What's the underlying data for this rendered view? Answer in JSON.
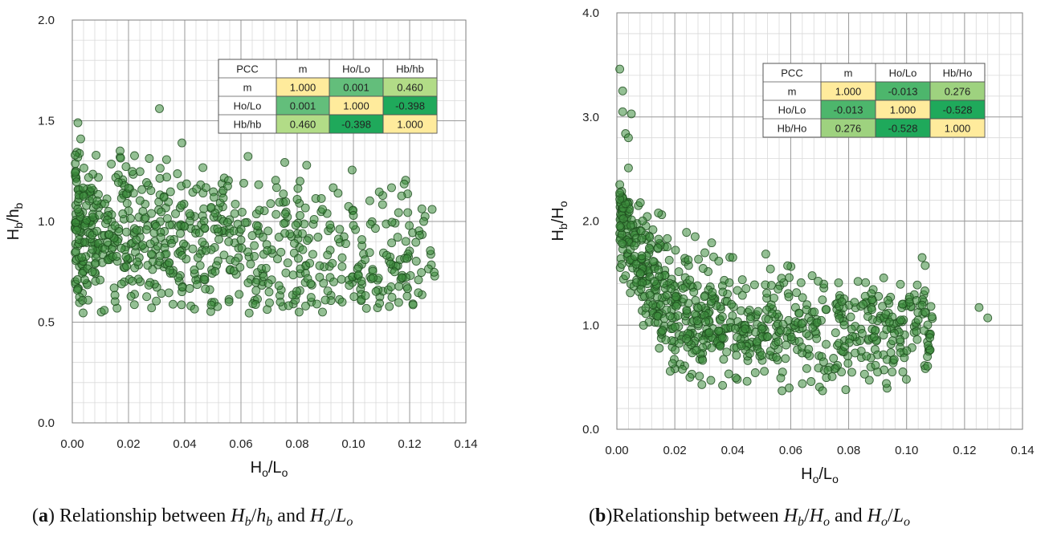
{
  "chart_data": [
    {
      "type": "scatter",
      "panel": "a",
      "xlabel": {
        "main": "H",
        "sub1": "o",
        "mid": "/L",
        "sub2": "o"
      },
      "ylabel": {
        "main": "H",
        "sub1": "b",
        "mid": "/h",
        "sub2": "b"
      },
      "xlim": [
        0,
        0.14
      ],
      "ylim": [
        0,
        2.0
      ],
      "xticks": [
        "0.00",
        "0.02",
        "0.04",
        "0.06",
        "0.08",
        "0.10",
        "0.12",
        "0.14"
      ],
      "yticks": [
        "0.0",
        "0.5",
        "1.0",
        "1.5",
        "2.0"
      ],
      "grid": true,
      "point_color": "#3c8c3c",
      "caption": {
        "label": "a",
        "text": "Relationship between",
        "v1": "H",
        "v1sub": "b",
        "v1b": "h",
        "v1bsub": "b",
        "and": "and",
        "v2": "H",
        "v2sub": "o",
        "v2b": "L",
        "v2bsub": "o"
      },
      "table": {
        "headers": [
          "PCC",
          "m",
          "Ho/Lo",
          "Hb/hb"
        ],
        "rows": [
          {
            "label": "m",
            "values": [
              "1.000",
              "0.001",
              "0.460"
            ]
          },
          {
            "label": "Ho/Lo",
            "values": [
              "0.001",
              "1.000",
              "-0.398"
            ]
          },
          {
            "label": "Hb/hb",
            "values": [
              "0.460",
              "-0.398",
              "1.000"
            ]
          }
        ]
      },
      "generator": {
        "n": 720,
        "seed": 11,
        "xmax": 0.128,
        "skew": 1.6,
        "base": 0.97,
        "slope": -1.8,
        "spread": 0.2,
        "ymin": 0.54,
        "ymax": 1.35
      },
      "points": [
        [
          0.002,
          1.49
        ],
        [
          0.003,
          1.41
        ],
        [
          0.001,
          1.33
        ],
        [
          0.031,
          1.56
        ],
        [
          0.039,
          1.39
        ],
        [
          0.017,
          1.35
        ],
        [
          0.128,
          1.06
        ],
        [
          0.125,
          1.0
        ],
        [
          0.107,
          0.72
        ],
        [
          0.103,
          0.91
        ],
        [
          0.1,
          1.03
        ],
        [
          0.1,
          0.98
        ],
        [
          0.096,
          0.6
        ],
        [
          0.096,
          0.82
        ],
        [
          0.093,
          0.7
        ],
        [
          0.089,
          1.06
        ],
        [
          0.089,
          0.55
        ],
        [
          0.09,
          0.61
        ],
        [
          0.081,
          1.2
        ],
        [
          0.08,
          1.11
        ],
        [
          0.081,
          1.03
        ],
        [
          0.083,
          0.58
        ],
        [
          0.087,
          0.59
        ],
        [
          0.061,
          1.19
        ],
        [
          0.064,
          0.93
        ],
        [
          0.07,
          0.65
        ],
        [
          0.074,
          0.6
        ],
        [
          0.088,
          0.78
        ]
      ]
    },
    {
      "type": "scatter",
      "panel": "b",
      "xlabel": {
        "main": "H",
        "sub1": "o",
        "mid": "/L",
        "sub2": "o"
      },
      "ylabel": {
        "main": "H",
        "sub1": "b",
        "mid": "/H",
        "sub2": "o"
      },
      "xlim": [
        0,
        0.14
      ],
      "ylim": [
        0,
        4.0
      ],
      "xticks": [
        "0.00",
        "0.02",
        "0.04",
        "0.06",
        "0.08",
        "0.10",
        "0.12",
        "0.14"
      ],
      "yticks": [
        "0.0",
        "1.0",
        "2.0",
        "3.0",
        "4.0"
      ],
      "grid": true,
      "point_color": "#3c8c3c",
      "caption": {
        "label": "b",
        "text": "Relationship between",
        "v1": "H",
        "v1sub": "b",
        "v1b": "H",
        "v1bsub": "o",
        "and": "and",
        "v2": "H",
        "v2sub": "o",
        "v2b": "L",
        "v2bsub": "o"
      },
      "table": {
        "headers": [
          "PCC",
          "m",
          "Ho/Lo",
          "Hb/Ho"
        ],
        "rows": [
          {
            "label": "m",
            "values": [
              "1.000",
              "-0.013",
              "0.276"
            ]
          },
          {
            "label": "Ho/Lo",
            "values": [
              "-0.013",
              "1.000",
              "-0.528"
            ]
          },
          {
            "label": "Hb/Ho",
            "values": [
              "0.276",
              "-0.528",
              "1.000"
            ]
          }
        ]
      },
      "generator": {
        "n": 760,
        "seed": 29,
        "xmax": 0.108,
        "skew": 1.5,
        "base": 1.0,
        "decay": 0.012,
        "amp": 1.3,
        "spread": 0.3,
        "ymin": 0.36,
        "ymax": 2.3
      },
      "points": [
        [
          0.001,
          3.46
        ],
        [
          0.002,
          3.25
        ],
        [
          0.002,
          3.05
        ],
        [
          0.005,
          3.03
        ],
        [
          0.003,
          2.84
        ],
        [
          0.004,
          2.8
        ],
        [
          0.004,
          2.51
        ],
        [
          0.001,
          2.35
        ],
        [
          0.002,
          2.22
        ],
        [
          0.001,
          2.21
        ],
        [
          0.001,
          2.27
        ],
        [
          0.125,
          1.17
        ],
        [
          0.128,
          1.07
        ],
        [
          0.108,
          0.88
        ],
        [
          0.104,
          1.05
        ],
        [
          0.101,
          1.27
        ],
        [
          0.101,
          1.22
        ],
        [
          0.098,
          1.05
        ],
        [
          0.095,
          0.55
        ],
        [
          0.093,
          0.44
        ],
        [
          0.09,
          0.55
        ],
        [
          0.088,
          1.15
        ],
        [
          0.085,
          1.2
        ],
        [
          0.082,
          1.22
        ],
        [
          0.079,
          0.38
        ],
        [
          0.071,
          0.37
        ],
        [
          0.057,
          0.37
        ],
        [
          0.04,
          1.65
        ],
        [
          0.053,
          1.54
        ]
      ]
    }
  ]
}
